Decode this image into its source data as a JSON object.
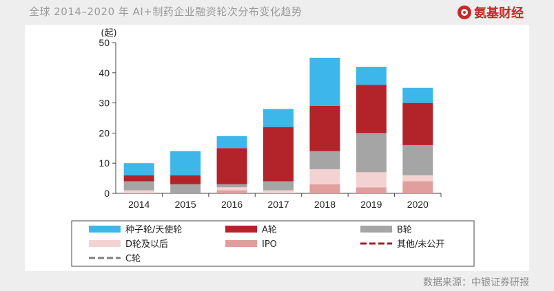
{
  "header": {
    "title": "全球 2014–2020 年 AI+制药企业融资轮次分布变化趋势",
    "brand": "氨基财经"
  },
  "footer": {
    "source": "数据来源：中银证券研报"
  },
  "colors": {
    "seed": "#3db6ea",
    "a": "#b3232a",
    "b": "#a5a5a5",
    "d": "#f4d2d2",
    "ipo": "#e09f9c",
    "other": "#9a1f2a",
    "c": "#7f7f7f"
  },
  "chart_data": {
    "type": "bar",
    "stacked": true,
    "ylabel": "(起)",
    "ylim": [
      0,
      50
    ],
    "yticks": [
      "0",
      "10",
      "20",
      "30",
      "40",
      "50"
    ],
    "categories": [
      "2014",
      "2015",
      "2016",
      "2017",
      "2018",
      "2019",
      "2020"
    ],
    "legend_position": "bottom",
    "series": [
      {
        "name": "IPO",
        "key": "ipo",
        "values": [
          0,
          0,
          1,
          0,
          3,
          2,
          4
        ]
      },
      {
        "name": "D轮及以后",
        "key": "d",
        "values": [
          1,
          0,
          1,
          1,
          5,
          5,
          2
        ]
      },
      {
        "name": "B轮",
        "key": "b",
        "values": [
          3,
          3,
          1,
          3,
          6,
          13,
          10
        ]
      },
      {
        "name": "A轮",
        "key": "a",
        "values": [
          2,
          3,
          12,
          18,
          15,
          16,
          14
        ]
      },
      {
        "name": "种子轮/天使轮",
        "key": "seed",
        "values": [
          4,
          8,
          4,
          6,
          16,
          6,
          5
        ]
      }
    ],
    "legend": [
      {
        "label": "种子轮/天使轮",
        "key": "seed",
        "style": "box"
      },
      {
        "label": "A轮",
        "key": "a",
        "style": "box"
      },
      {
        "label": "B轮",
        "key": "b",
        "style": "box"
      },
      {
        "label": "D轮及以后",
        "key": "d",
        "style": "box"
      },
      {
        "label": "IPO",
        "key": "ipo",
        "style": "box"
      },
      {
        "label": "其他/未公开",
        "key": "other",
        "style": "dash"
      },
      {
        "label": "C轮",
        "key": "c",
        "style": "dash"
      }
    ]
  }
}
